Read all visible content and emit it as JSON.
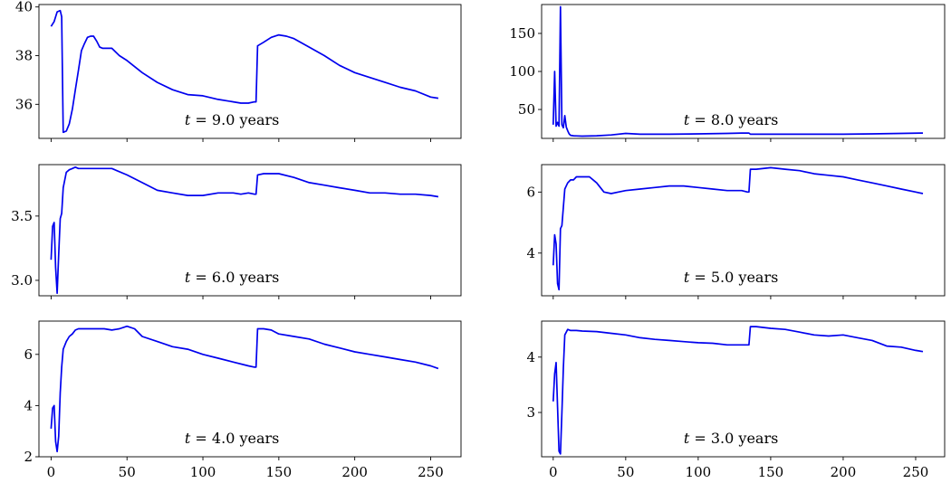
{
  "figure": {
    "line_color": "#0000ee",
    "axes_color": "#000000",
    "background": "#ffffff"
  },
  "chart_data": [
    {
      "type": "line",
      "annotation": {
        "t": "t",
        "rest": " = 9.0 years"
      },
      "xlim": [
        -8,
        270
      ],
      "ylim": [
        34.6,
        40.1
      ],
      "xticks": [
        0,
        50,
        100,
        150,
        200,
        250
      ],
      "xtick_labels_shown": false,
      "yticks": [
        36,
        38,
        40
      ],
      "ytick_labels": [
        "36",
        "38",
        "40"
      ],
      "grid": false,
      "x": [
        0,
        2,
        4,
        6,
        7,
        8,
        10,
        12,
        14,
        16,
        18,
        20,
        22,
        24,
        26,
        28,
        30,
        32,
        34,
        36,
        40,
        45,
        50,
        60,
        70,
        80,
        90,
        100,
        110,
        120,
        125,
        130,
        134,
        135,
        136,
        140,
        145,
        150,
        155,
        160,
        170,
        180,
        190,
        200,
        210,
        220,
        230,
        240,
        250,
        255
      ],
      "y": [
        39.2,
        39.4,
        39.8,
        39.85,
        39.6,
        34.85,
        34.9,
        35.2,
        35.8,
        36.6,
        37.4,
        38.2,
        38.5,
        38.75,
        38.8,
        38.8,
        38.6,
        38.35,
        38.3,
        38.3,
        38.3,
        38.0,
        37.8,
        37.3,
        36.9,
        36.6,
        36.4,
        36.35,
        36.2,
        36.1,
        36.05,
        36.05,
        36.1,
        36.1,
        38.4,
        38.55,
        38.75,
        38.85,
        38.8,
        38.7,
        38.35,
        38.0,
        37.6,
        37.3,
        37.1,
        36.9,
        36.7,
        36.55,
        36.3,
        36.25
      ]
    },
    {
      "type": "line",
      "annotation": {
        "t": "t",
        "rest": " = 8.0 years"
      },
      "xlim": [
        -8,
        270
      ],
      "ylim": [
        12,
        188
      ],
      "xticks": [
        0,
        50,
        100,
        150,
        200,
        250
      ],
      "xtick_labels_shown": false,
      "yticks": [
        50,
        100,
        150
      ],
      "ytick_labels": [
        "50",
        "100",
        "150"
      ],
      "grid": false,
      "x": [
        0,
        1,
        2,
        3,
        4,
        5,
        6,
        7,
        8,
        9,
        10,
        11,
        12,
        14,
        20,
        30,
        40,
        50,
        60,
        80,
        100,
        120,
        130,
        134,
        135,
        136,
        140,
        160,
        180,
        200,
        220,
        240,
        255
      ],
      "y": [
        30,
        100,
        28,
        33,
        28,
        185,
        30,
        26,
        42,
        27,
        22,
        18,
        16,
        15.5,
        15,
        15.5,
        16.5,
        18.5,
        17.5,
        17.5,
        18,
        18.5,
        19,
        19,
        19,
        17.5,
        17.5,
        17.5,
        17.5,
        17.5,
        18,
        18.5,
        19
      ]
    },
    {
      "type": "line",
      "annotation": {
        "t": "t",
        "rest": " = 6.0 years"
      },
      "xlim": [
        -8,
        270
      ],
      "ylim": [
        2.88,
        3.9
      ],
      "xticks": [
        0,
        50,
        100,
        150,
        200,
        250
      ],
      "xtick_labels_shown": false,
      "yticks": [
        3.0,
        3.5
      ],
      "ytick_labels": [
        "3.0",
        "3.5"
      ],
      "grid": false,
      "x": [
        0,
        1,
        2,
        3,
        4,
        5,
        6,
        7,
        8,
        10,
        12,
        14,
        16,
        18,
        20,
        25,
        30,
        40,
        50,
        60,
        70,
        80,
        90,
        100,
        110,
        120,
        125,
        130,
        134,
        135,
        136,
        140,
        150,
        160,
        170,
        180,
        190,
        200,
        210,
        220,
        230,
        240,
        250,
        255
      ],
      "y": [
        3.16,
        3.42,
        3.45,
        3.1,
        2.9,
        3.2,
        3.48,
        3.52,
        3.72,
        3.84,
        3.86,
        3.87,
        3.88,
        3.87,
        3.87,
        3.87,
        3.87,
        3.87,
        3.82,
        3.76,
        3.7,
        3.68,
        3.66,
        3.66,
        3.68,
        3.68,
        3.67,
        3.68,
        3.67,
        3.67,
        3.82,
        3.83,
        3.83,
        3.8,
        3.76,
        3.74,
        3.72,
        3.7,
        3.68,
        3.68,
        3.67,
        3.67,
        3.66,
        3.65
      ]
    },
    {
      "type": "line",
      "annotation": {
        "t": "t",
        "rest": " = 5.0 years"
      },
      "xlim": [
        -8,
        270
      ],
      "ylim": [
        2.6,
        6.9
      ],
      "xticks": [
        0,
        50,
        100,
        150,
        200,
        250
      ],
      "xtick_labels_shown": false,
      "yticks": [
        4,
        6
      ],
      "ytick_labels": [
        "4",
        "6"
      ],
      "grid": false,
      "x": [
        0,
        1,
        2,
        3,
        4,
        5,
        6,
        7,
        8,
        10,
        12,
        14,
        16,
        18,
        20,
        25,
        30,
        35,
        40,
        45,
        50,
        60,
        70,
        80,
        90,
        100,
        110,
        120,
        130,
        134,
        135,
        136,
        140,
        150,
        160,
        170,
        180,
        190,
        200,
        210,
        220,
        230,
        240,
        250,
        255
      ],
      "y": [
        3.6,
        4.6,
        4.3,
        3.0,
        2.8,
        4.8,
        4.9,
        5.5,
        6.1,
        6.3,
        6.4,
        6.4,
        6.5,
        6.5,
        6.5,
        6.5,
        6.3,
        6.0,
        5.95,
        6.0,
        6.05,
        6.1,
        6.15,
        6.2,
        6.2,
        6.15,
        6.1,
        6.05,
        6.05,
        6.0,
        6.0,
        6.75,
        6.75,
        6.8,
        6.75,
        6.7,
        6.6,
        6.55,
        6.5,
        6.4,
        6.3,
        6.2,
        6.1,
        6.0,
        5.95
      ]
    },
    {
      "type": "line",
      "annotation": {
        "t": "t",
        "rest": " = 4.0 years"
      },
      "xlim": [
        -8,
        270
      ],
      "ylim": [
        2.0,
        7.3
      ],
      "xticks": [
        0,
        50,
        100,
        150,
        200,
        250
      ],
      "xtick_labels_shown": true,
      "xtick_labels": [
        "0",
        "50",
        "100",
        "150",
        "200",
        "250"
      ],
      "yticks": [
        2,
        4,
        6
      ],
      "ytick_labels": [
        "2",
        "4",
        "6"
      ],
      "grid": false,
      "x": [
        0,
        1,
        2,
        3,
        4,
        5,
        6,
        7,
        8,
        10,
        12,
        14,
        16,
        18,
        20,
        25,
        30,
        35,
        40,
        45,
        50,
        55,
        60,
        70,
        80,
        90,
        100,
        110,
        120,
        130,
        134,
        135,
        136,
        140,
        145,
        150,
        160,
        170,
        180,
        190,
        200,
        210,
        220,
        230,
        240,
        250,
        255
      ],
      "y": [
        3.1,
        3.9,
        4.0,
        2.6,
        2.2,
        2.8,
        4.5,
        5.5,
        6.2,
        6.5,
        6.7,
        6.8,
        6.95,
        7.0,
        7.0,
        7.0,
        7.0,
        7.0,
        6.95,
        7.0,
        7.1,
        7.0,
        6.7,
        6.5,
        6.3,
        6.2,
        6.0,
        5.85,
        5.7,
        5.55,
        5.5,
        5.5,
        7.0,
        7.0,
        6.95,
        6.8,
        6.7,
        6.6,
        6.4,
        6.25,
        6.1,
        6.0,
        5.9,
        5.8,
        5.7,
        5.55,
        5.45
      ]
    },
    {
      "type": "line",
      "annotation": {
        "t": "t",
        "rest": " = 3.0 years"
      },
      "xlim": [
        -8,
        270
      ],
      "ylim": [
        2.2,
        4.65
      ],
      "xticks": [
        0,
        50,
        100,
        150,
        200,
        250
      ],
      "xtick_labels_shown": true,
      "xtick_labels": [
        "0",
        "50",
        "100",
        "150",
        "200",
        "250"
      ],
      "yticks": [
        3,
        4
      ],
      "ytick_labels": [
        "3",
        "4"
      ],
      "grid": false,
      "x": [
        0,
        1,
        2,
        3,
        4,
        5,
        6,
        7,
        8,
        10,
        12,
        14,
        16,
        20,
        30,
        40,
        50,
        60,
        70,
        80,
        90,
        100,
        110,
        120,
        130,
        134,
        135,
        136,
        140,
        150,
        160,
        170,
        180,
        190,
        200,
        210,
        220,
        230,
        240,
        250,
        255
      ],
      "y": [
        3.2,
        3.7,
        3.9,
        3.1,
        2.3,
        2.25,
        3.0,
        3.8,
        4.4,
        4.5,
        4.48,
        4.48,
        4.48,
        4.47,
        4.46,
        4.43,
        4.4,
        4.35,
        4.32,
        4.3,
        4.28,
        4.26,
        4.25,
        4.22,
        4.22,
        4.22,
        4.22,
        4.55,
        4.55,
        4.52,
        4.5,
        4.45,
        4.4,
        4.38,
        4.4,
        4.35,
        4.3,
        4.2,
        4.18,
        4.12,
        4.1
      ]
    }
  ]
}
